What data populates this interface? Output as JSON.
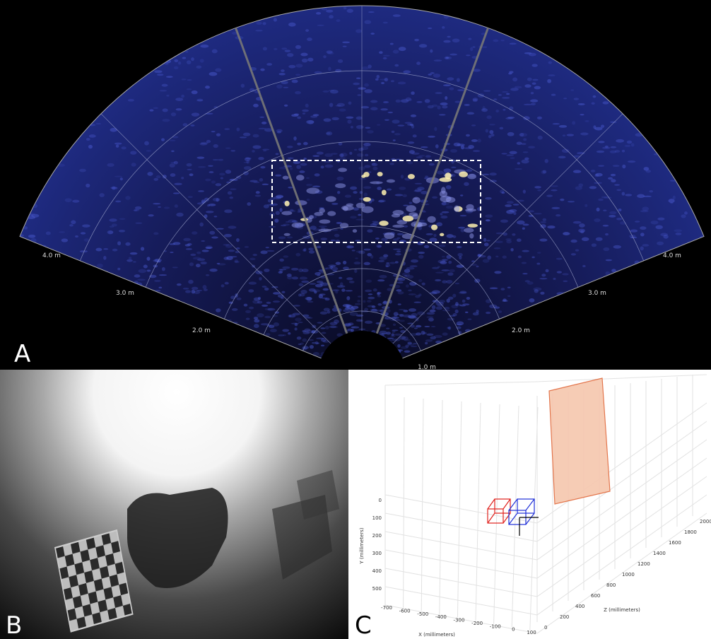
{
  "sonar": {
    "panel_label": "A",
    "range_labels_left": [
      "4.0 m",
      "3.0 m",
      "2.0 m"
    ],
    "range_labels_right": [
      "1.0 m",
      "2.0 m",
      "3.0 m",
      "4.0 m"
    ]
  },
  "photo": {
    "panel_label": "B"
  },
  "plot3d": {
    "panel_label": "C",
    "x_label": "X (millimeters)",
    "y_label": "Y (millimeters)",
    "z_label": "Z (millimeters)",
    "x_ticks": [
      -700,
      -600,
      -500,
      -400,
      -300,
      -200,
      -100,
      0,
      100
    ],
    "y_ticks": [
      0,
      100,
      200,
      300,
      400,
      500
    ],
    "z_ticks": [
      0,
      200,
      400,
      600,
      800,
      1000,
      1200,
      1400,
      1600,
      1800,
      2000
    ]
  }
}
